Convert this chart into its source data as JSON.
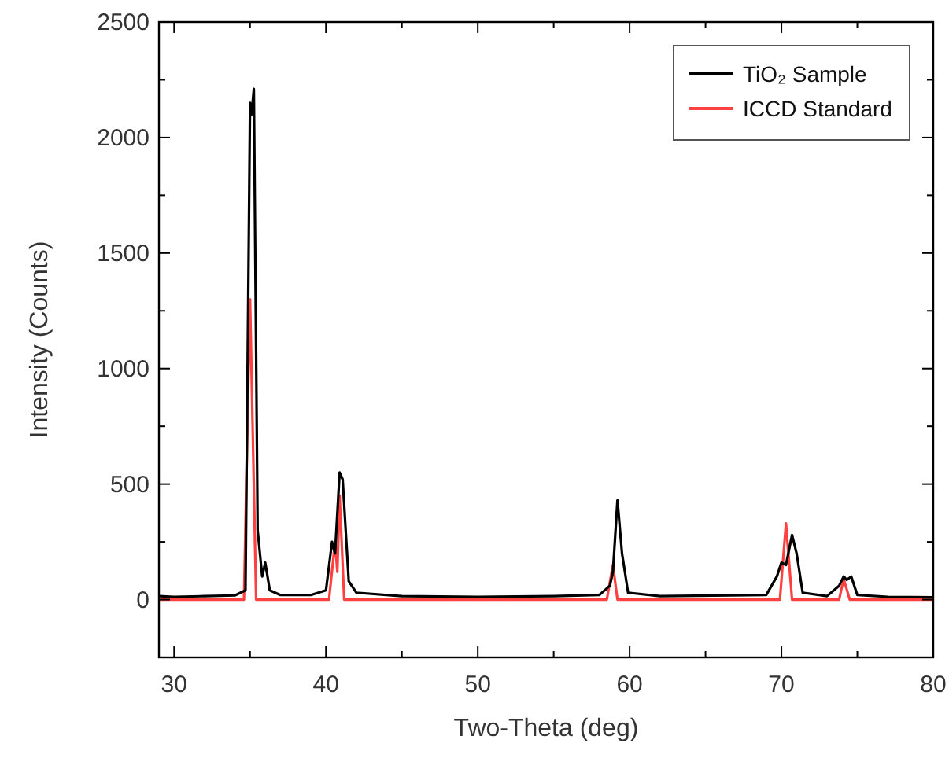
{
  "chart_data": {
    "type": "line",
    "xlabel": "Two-Theta (deg)",
    "ylabel": "Intensity (Counts)",
    "xlim": [
      29,
      80
    ],
    "ylim": [
      -250,
      2500
    ],
    "xticks": [
      30,
      {
        "value": 35,
        "label": null
      },
      40,
      {
        "value": 45,
        "label": null
      },
      50,
      {
        "value": 55,
        "label": null
      },
      60,
      {
        "value": 65,
        "label": null
      },
      70,
      {
        "value": 75,
        "label": null
      },
      80
    ],
    "yticks": [
      0,
      {
        "value": 250,
        "label": null
      },
      500,
      {
        "value": 750,
        "label": null
      },
      1000,
      {
        "value": 1250,
        "label": null
      },
      1500,
      {
        "value": 1750,
        "label": null
      },
      2000,
      {
        "value": 2250,
        "label": null
      },
      2500
    ],
    "grid": false,
    "legend": "top right",
    "marker": "none",
    "line_style": "solid",
    "series": [
      {
        "name": "TiO₂ Sample",
        "color": "#000000",
        "x": [
          29,
          30,
          32,
          34,
          34.7,
          35.0,
          35.1,
          35.25,
          35.5,
          35.8,
          36.0,
          36.3,
          37,
          39,
          40,
          40.4,
          40.6,
          40.9,
          41.1,
          41.5,
          42,
          45,
          50,
          55,
          58,
          58.7,
          58.9,
          59.2,
          59.5,
          59.9,
          62,
          69,
          69.7,
          70.0,
          70.3,
          70.7,
          71.0,
          71.4,
          73,
          73.8,
          74.1,
          74.3,
          74.6,
          75,
          77,
          80
        ],
        "values": [
          15,
          12,
          15,
          18,
          40,
          2150,
          2100,
          2210,
          300,
          100,
          160,
          40,
          20,
          20,
          40,
          250,
          200,
          550,
          520,
          80,
          30,
          15,
          12,
          15,
          20,
          60,
          120,
          430,
          200,
          30,
          15,
          20,
          100,
          160,
          150,
          280,
          200,
          30,
          15,
          60,
          100,
          85,
          100,
          20,
          12,
          10
        ]
      },
      {
        "name": "ICCD Standard",
        "color": "#ff4040",
        "x": [
          29,
          34.6,
          35.0,
          35.4,
          40.2,
          40.6,
          40.75,
          40.9,
          41.2,
          58.5,
          58.9,
          59.2,
          69.9,
          70.3,
          70.7,
          73.8,
          74.1,
          74.5,
          80
        ],
        "values": [
          0,
          0,
          1300,
          0,
          0,
          250,
          120,
          450,
          0,
          0,
          150,
          0,
          0,
          330,
          0,
          0,
          90,
          0,
          0
        ]
      }
    ]
  }
}
